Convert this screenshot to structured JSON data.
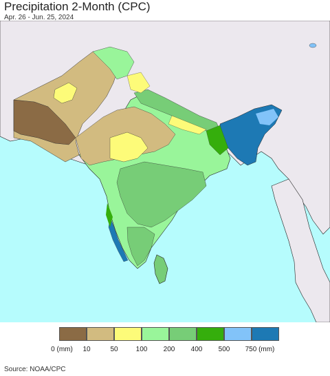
{
  "header": {
    "title": "Precipitation 2-Month (CPC)",
    "subtitle": "Apr. 26 - Jun. 25, 2024"
  },
  "legend": {
    "colors": [
      "#8b6b45",
      "#d2bb80",
      "#fdfb79",
      "#99f59a",
      "#77cd77",
      "#35ae0c",
      "#82c3f9",
      "#1d79b4"
    ],
    "ticks": [
      "0 (mm)",
      "10",
      "50",
      "100",
      "200",
      "400",
      "500",
      "750 (mm)"
    ]
  },
  "source": "Source: NOAA/CPC",
  "map_colors": {
    "ocean": "#b6fcfd",
    "land_other": "#ece8ee",
    "border": "#111111"
  }
}
